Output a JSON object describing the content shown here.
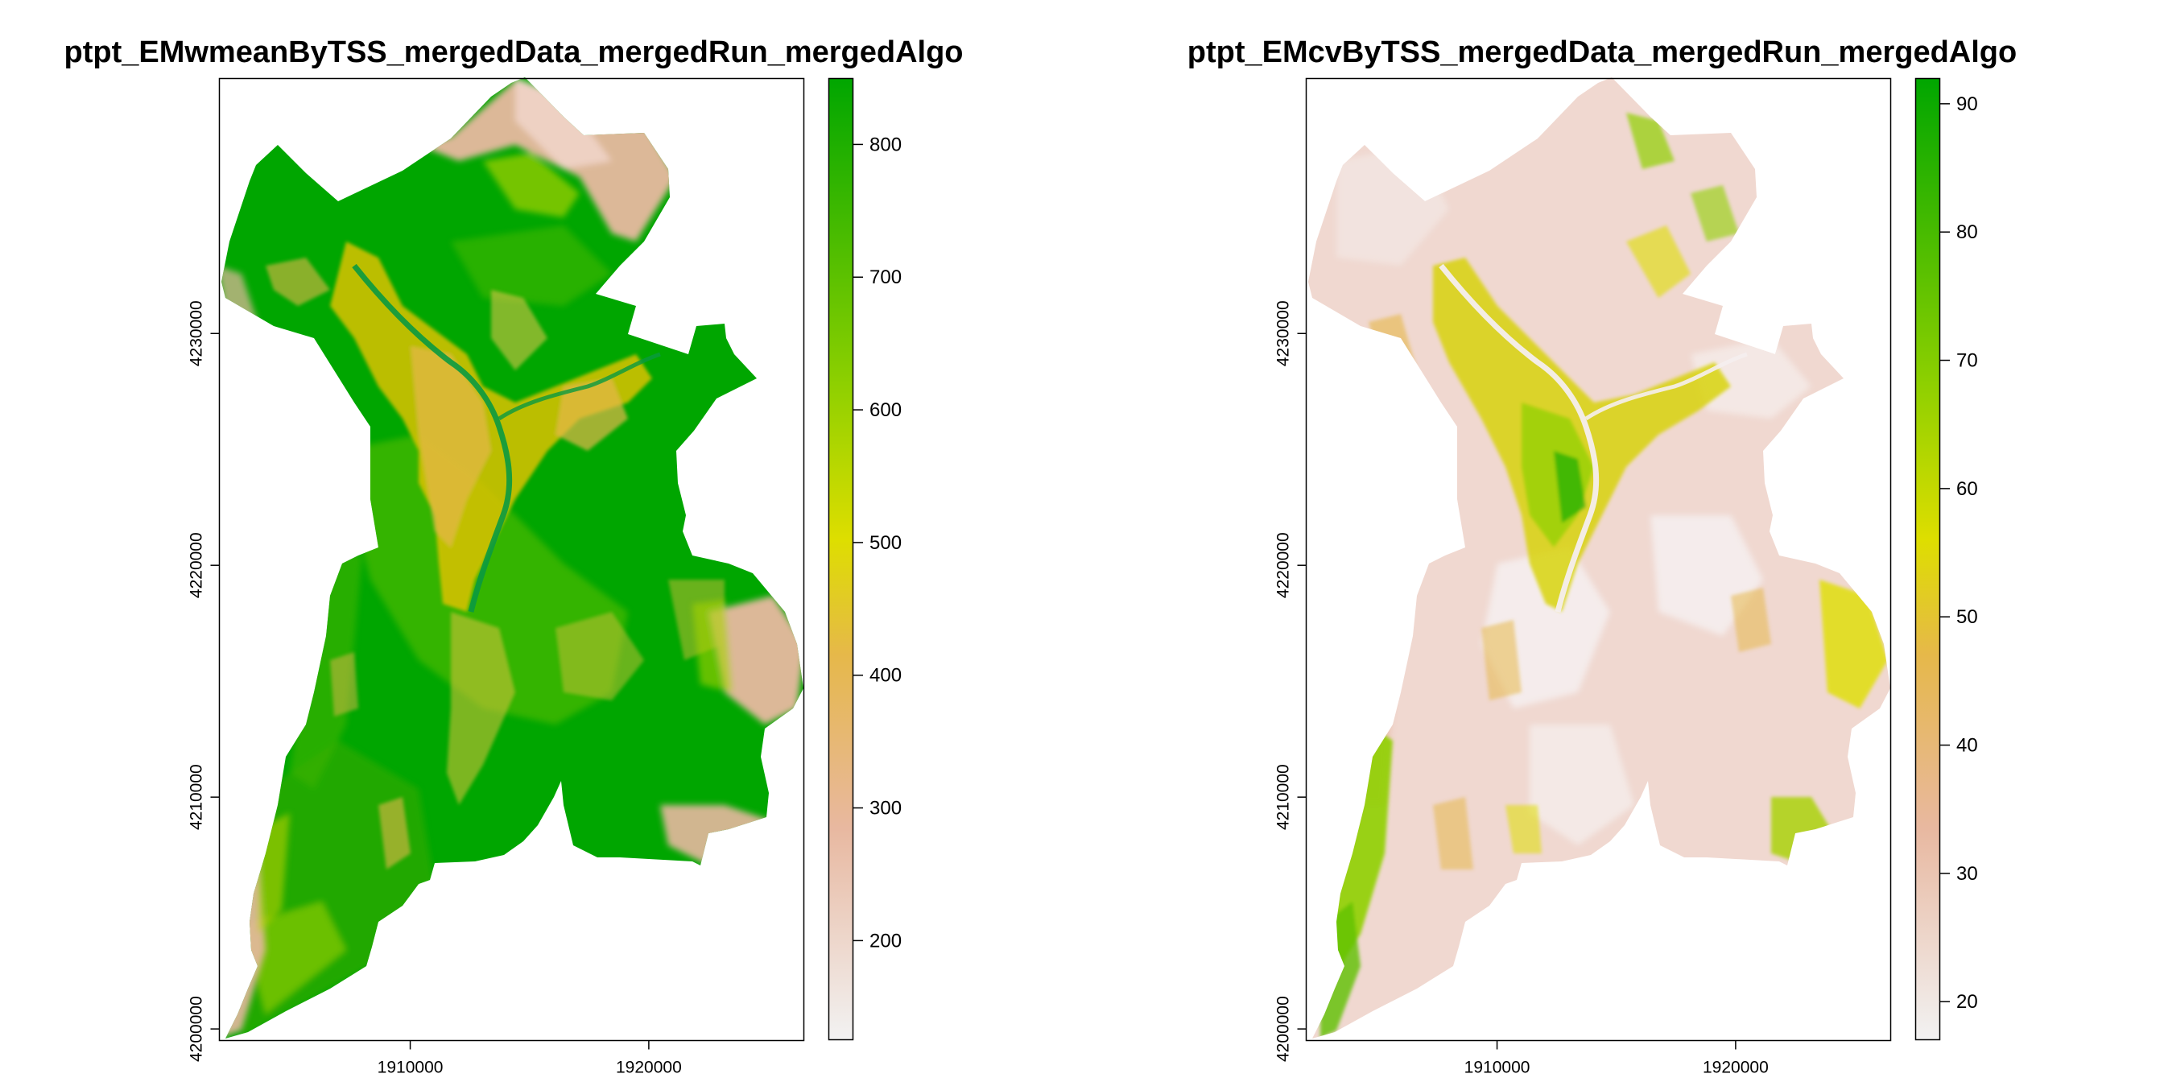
{
  "chart_data": [
    {
      "type": "heatmap",
      "title": "ptpt_EMwmeanByTSS_mergedData_mergedRun_mergedAlgo",
      "xlabel": "",
      "ylabel": "",
      "xlim": [
        1902000,
        1926500
      ],
      "ylim": [
        4199500,
        4241000
      ],
      "x_ticks": [
        1910000,
        1920000
      ],
      "x_tick_labels": [
        "1910000",
        "1920000"
      ],
      "y_ticks": [
        4200000,
        4210000,
        4220000,
        4230000
      ],
      "y_tick_labels": [
        "4200000",
        "4210000",
        "4220000",
        "4230000"
      ],
      "legend_range": [
        125,
        850
      ],
      "legend_ticks": [
        200,
        300,
        400,
        500,
        600,
        700,
        800
      ],
      "legend_tick_labels": [
        "200",
        "300",
        "400",
        "500",
        "600",
        "700",
        "800"
      ],
      "colors": [
        "#f2f2f2",
        "#e8b8a0",
        "#e6b84a",
        "#dede00",
        "#8fd000",
        "#00a600"
      ],
      "legend_placement": "right",
      "grid": false
    },
    {
      "type": "heatmap",
      "title": "ptpt_EMcvByTSS_mergedData_mergedRun_mergedAlgo",
      "xlabel": "",
      "ylabel": "",
      "xlim": [
        1902000,
        1926500
      ],
      "ylim": [
        4199500,
        4241000
      ],
      "x_ticks": [
        1910000,
        1920000
      ],
      "x_tick_labels": [
        "1910000",
        "1920000"
      ],
      "y_ticks": [
        4200000,
        4210000,
        4220000,
        4230000
      ],
      "y_tick_labels": [
        "4200000",
        "4210000",
        "4220000",
        "4230000"
      ],
      "legend_range": [
        17,
        92
      ],
      "legend_ticks": [
        20,
        30,
        40,
        50,
        60,
        70,
        80,
        90
      ],
      "legend_tick_labels": [
        "20",
        "30",
        "40",
        "50",
        "60",
        "70",
        "80",
        "90"
      ],
      "colors": [
        "#f2f2f2",
        "#e8b8a0",
        "#e6b84a",
        "#dede00",
        "#8fd000",
        "#00a600"
      ],
      "legend_placement": "right",
      "grid": false
    }
  ]
}
